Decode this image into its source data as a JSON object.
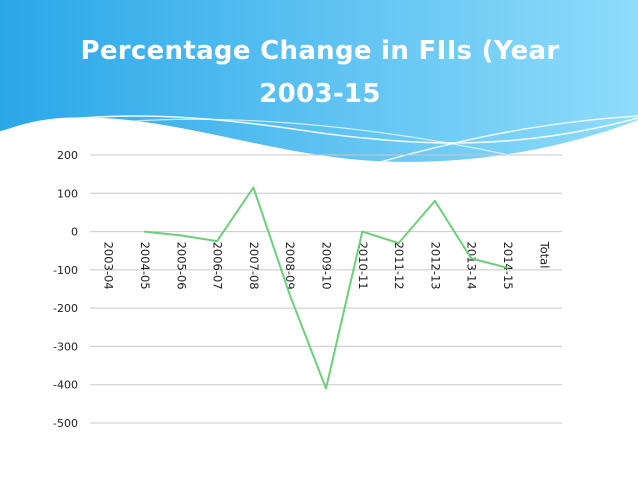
{
  "slide": {
    "title": "Percentage Change in FIIs (Year 2003-15"
  },
  "colors": {
    "header_gradient_start": "#2aa7e8",
    "header_gradient_end": "#7fd6fa",
    "title_text": "#ffffff",
    "series_line": "#6ccf7a",
    "gridline": "#c8c8c8",
    "axis_text": "#222222"
  },
  "chart_data": {
    "type": "line",
    "title": "",
    "xlabel": "",
    "ylabel": "",
    "categories": [
      "2003-04",
      "2004-05",
      "2005-06",
      "2006-07",
      "2007-08",
      "2008-09",
      "2009-10",
      "2010-11",
      "2011-12",
      "2012-13",
      "2013-14",
      "2014-15",
      "Total"
    ],
    "series": [
      {
        "values": [
          null,
          0,
          -10,
          -25,
          115,
          -165,
          -410,
          0,
          -30,
          80,
          -70,
          -95,
          null
        ]
      }
    ],
    "ylim": [
      -500,
      200
    ],
    "yticks": [
      200,
      100,
      0,
      -100,
      -200,
      -300,
      -400,
      -500
    ],
    "ytick_labels": [
      "200",
      "100",
      "0",
      "-100",
      "-200",
      "-300",
      "-400",
      "-500"
    ],
    "grid": true,
    "legend": "none",
    "category_labels_rotated": true
  }
}
